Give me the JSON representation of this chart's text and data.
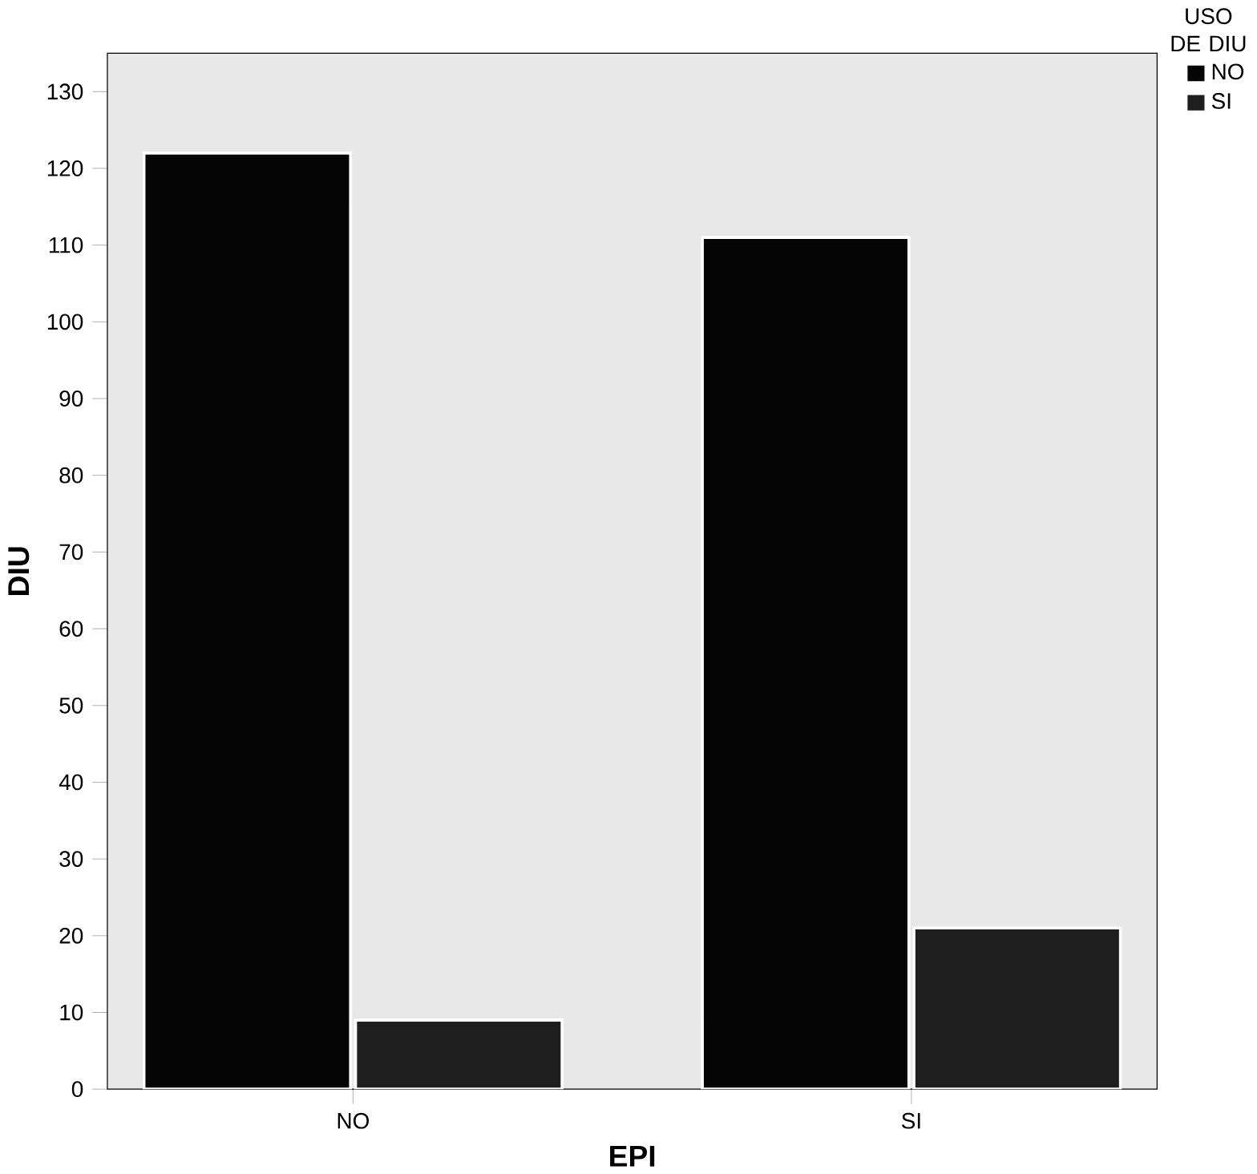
{
  "chart_data": {
    "type": "bar",
    "xlabel": "EPI",
    "ylabel": "DIU",
    "legend_title": "USO DE DIU",
    "legend": "top right",
    "categories": [
      "NO",
      "SI"
    ],
    "series": [
      {
        "name": "NO",
        "color": "#050505",
        "values": [
          122,
          111
        ]
      },
      {
        "name": "SI",
        "color": "#1e1e1e",
        "values": [
          9,
          21
        ]
      }
    ],
    "ylim": [
      0,
      135
    ],
    "yticks": [
      0,
      10,
      20,
      30,
      40,
      50,
      60,
      70,
      80,
      90,
      100,
      110,
      120,
      130
    ]
  }
}
